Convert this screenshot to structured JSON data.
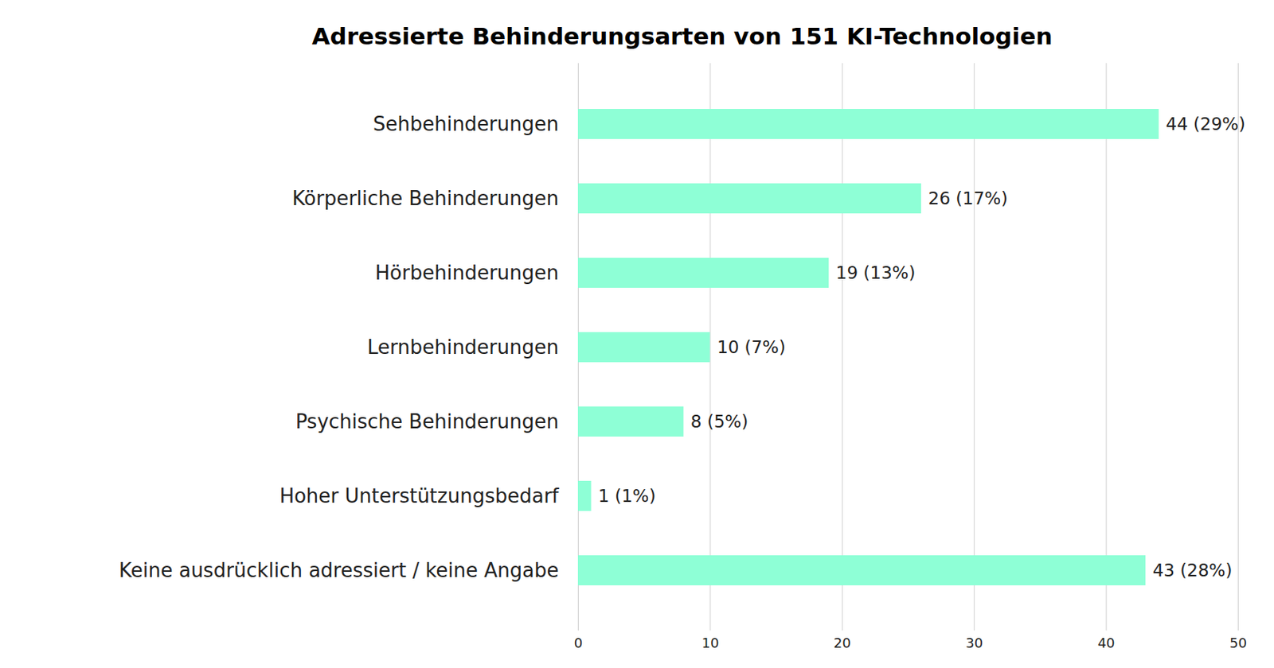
{
  "chart_data": {
    "type": "bar",
    "orientation": "horizontal",
    "title": "Adressierte Behinderungsarten von 151 KI-Technologien",
    "categories": [
      "Sehbehinderungen",
      "Körperliche Behinderungen",
      "Hörbehinderungen",
      "Lernbehinderungen",
      "Psychische Behinderungen",
      "Hoher Unterstützungsbedarf",
      "Keine ausdrücklich adressiert / keine Angabe"
    ],
    "values": [
      44,
      26,
      19,
      10,
      8,
      1,
      43
    ],
    "value_labels": [
      "44 (29%)",
      "26 (17%)",
      "19 (13%)",
      "10 (7%)",
      "8 (5%)",
      "1 (1%)",
      "43 (28%)"
    ],
    "data_labels": true,
    "color": "#8effd6",
    "xlim": [
      0,
      50
    ],
    "xticks": [
      0,
      10,
      20,
      30,
      40,
      50
    ],
    "grid": true
  }
}
